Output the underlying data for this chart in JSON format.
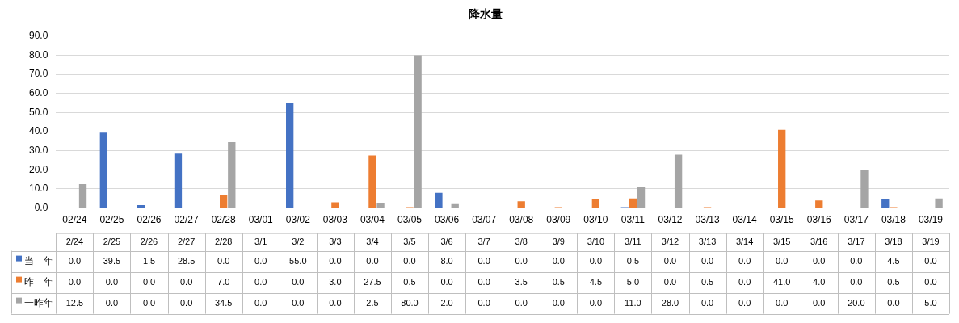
{
  "chart_data": {
    "type": "bar",
    "title": "降水量",
    "categories": [
      "02/24",
      "02/25",
      "02/26",
      "02/27",
      "02/28",
      "03/01",
      "03/02",
      "03/03",
      "03/04",
      "03/05",
      "03/06",
      "03/07",
      "03/08",
      "03/09",
      "03/10",
      "03/11",
      "03/12",
      "03/13",
      "03/14",
      "03/15",
      "03/16",
      "03/17",
      "03/18",
      "03/19"
    ],
    "series": [
      {
        "name": "当　年",
        "color": "#4472c4",
        "values": [
          0,
          39.5,
          1.5,
          28.5,
          0,
          0,
          55,
          0,
          0,
          0,
          8,
          0,
          0,
          0,
          0,
          0.5,
          0,
          0,
          0,
          0,
          0,
          0,
          4.5,
          0
        ],
        "value_labels": [
          "0.0",
          "39.5",
          "1.5",
          "28.5",
          "0.0",
          "0.0",
          "55.0",
          "0.0",
          "0.0",
          "0.0",
          "8.0",
          "0.0",
          "0.0",
          "0.0",
          "0.0",
          "0.5",
          "0.0",
          "0.0",
          "0.0",
          "0.0",
          "0.0",
          "0.0",
          "4.5",
          "0.0"
        ]
      },
      {
        "name": "昨　年",
        "color": "#ed7d31",
        "values": [
          0,
          0,
          0,
          0,
          7,
          0,
          0,
          3,
          27.5,
          0.5,
          0,
          0,
          3.5,
          0.5,
          4.5,
          5,
          0,
          0.5,
          0,
          41,
          4,
          0,
          0.5,
          0
        ],
        "value_labels": [
          "0.0",
          "0.0",
          "0.0",
          "0.0",
          "7.0",
          "0.0",
          "0.0",
          "3.0",
          "27.5",
          "0.5",
          "0.0",
          "0.0",
          "3.5",
          "0.5",
          "4.5",
          "5.0",
          "0.0",
          "0.5",
          "0.0",
          "41.0",
          "4.0",
          "0.0",
          "0.5",
          "0.0"
        ]
      },
      {
        "name": "一昨年",
        "color": "#a5a5a5",
        "values": [
          12.5,
          0,
          0,
          0,
          34.5,
          0,
          0,
          0,
          2.5,
          80,
          2,
          0,
          0,
          0,
          0,
          11,
          28,
          0,
          0,
          0,
          0,
          20,
          0,
          5
        ],
        "value_labels": [
          "12.5",
          "0.0",
          "0.0",
          "0.0",
          "34.5",
          "0.0",
          "0.0",
          "0.0",
          "2.5",
          "80.0",
          "2.0",
          "0.0",
          "0.0",
          "0.0",
          "0.0",
          "11.0",
          "28.0",
          "0.0",
          "0.0",
          "0.0",
          "0.0",
          "20.0",
          "0.0",
          "5.0"
        ]
      }
    ],
    "ylim": [
      0,
      90
    ],
    "yticks": [
      {
        "value": 0,
        "label": "0.0"
      },
      {
        "value": 10,
        "label": "10.0"
      },
      {
        "value": 20,
        "label": "20.0"
      },
      {
        "value": 30,
        "label": "30.0"
      },
      {
        "value": 40,
        "label": "40.0"
      },
      {
        "value": 50,
        "label": "50.0"
      },
      {
        "value": 60,
        "label": "60.0"
      },
      {
        "value": 70,
        "label": "70.0"
      },
      {
        "value": 80,
        "label": "80.0"
      },
      {
        "value": 90,
        "label": "90.0"
      }
    ],
    "grid": "y",
    "legend": "bottom left",
    "annotations": [
      "2/24",
      "2/25",
      "2/26",
      "2/27",
      "2/28",
      "3/1",
      "3/2",
      "3/3",
      "3/4",
      "3/5",
      "3/6",
      "3/7",
      "3/8",
      "3/9",
      "3/10",
      "3/11",
      "3/12",
      "3/13",
      "3/14",
      "3/15",
      "3/16",
      "3/17",
      "3/18",
      "3/19"
    ]
  }
}
